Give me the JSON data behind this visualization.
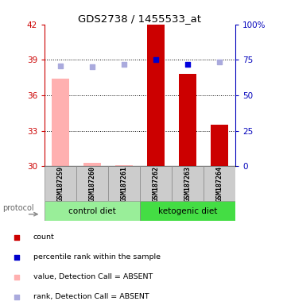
{
  "title": "GDS2738 / 1455533_at",
  "samples": [
    "GSM187259",
    "GSM187260",
    "GSM187261",
    "GSM187262",
    "GSM187263",
    "GSM187264"
  ],
  "ylim_left": [
    30,
    42
  ],
  "ylim_right": [
    0,
    100
  ],
  "yticks_left": [
    30,
    33,
    36,
    39,
    42
  ],
  "yticks_right": [
    0,
    25,
    50,
    75,
    100
  ],
  "bar_values": [
    37.4,
    30.3,
    30.1,
    42.0,
    37.8,
    33.5
  ],
  "bar_colors": [
    "#FFB0B0",
    "#FFB0B0",
    "#FFB0B0",
    "#CC0000",
    "#CC0000",
    "#CC0000"
  ],
  "dot_values_pct": [
    70.8,
    70.0,
    71.7,
    75.0,
    71.7,
    73.3
  ],
  "dot_colors": [
    "#AAAADD",
    "#AAAADD",
    "#AAAADD",
    "#0000CC",
    "#0000DD",
    "#AAAADD"
  ],
  "base_value": 30,
  "group_data": [
    {
      "start": 0,
      "end": 2,
      "label": "control diet",
      "color": "#99EE99"
    },
    {
      "start": 3,
      "end": 5,
      "label": "ketogenic diet",
      "color": "#44DD44"
    }
  ],
  "protocol_label": "protocol",
  "legend_items": [
    {
      "color": "#CC0000",
      "label": "count"
    },
    {
      "color": "#0000CC",
      "label": "percentile rank within the sample"
    },
    {
      "color": "#FFB0B0",
      "label": "value, Detection Call = ABSENT"
    },
    {
      "color": "#AAAADD",
      "label": "rank, Detection Call = ABSENT"
    }
  ],
  "left_axis_color": "#CC0000",
  "right_axis_color": "#0000BB",
  "grid_lines": [
    33,
    36,
    39
  ]
}
